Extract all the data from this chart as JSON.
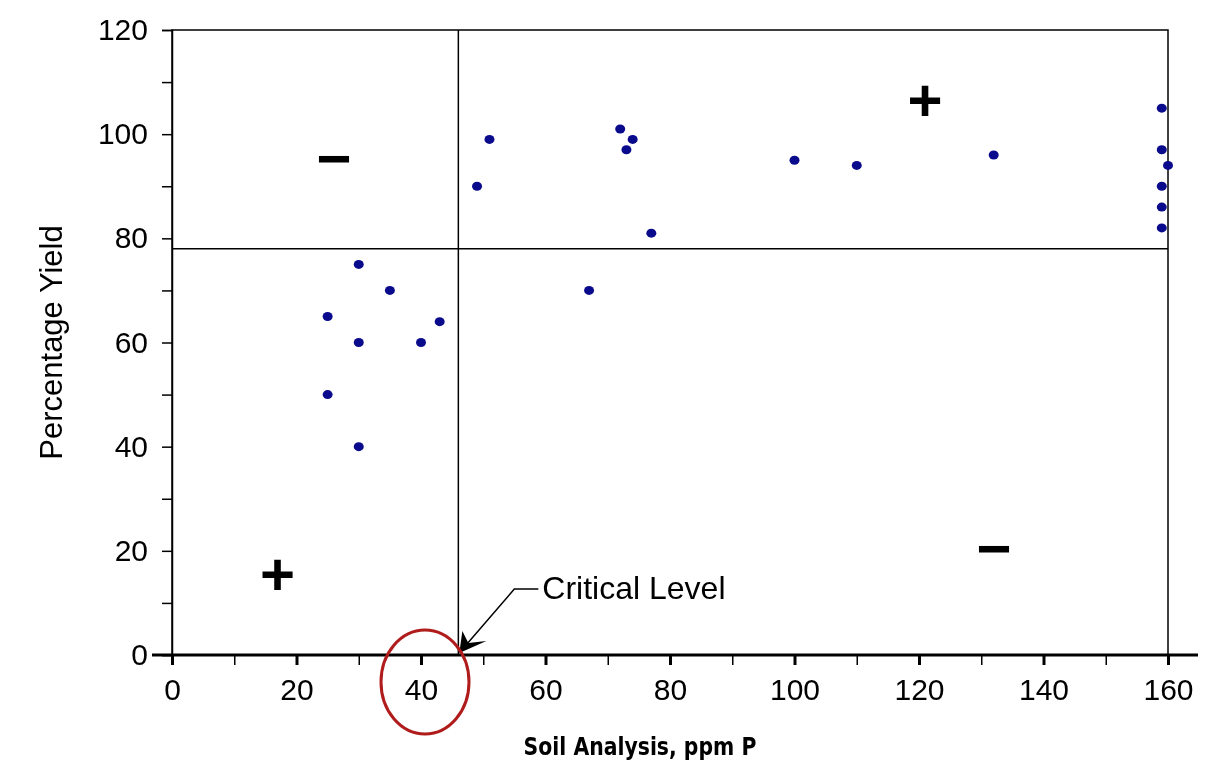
{
  "chart_data": {
    "type": "scatter",
    "xlabel": "Soil Analysis, ppm P",
    "ylabel": "Percentage Yield",
    "xlim": [
      0,
      160
    ],
    "ylim": [
      0,
      120
    ],
    "xticks": [
      0,
      {
        "value": 10,
        "label": null
      },
      20,
      {
        "value": 30,
        "label": null
      },
      40,
      {
        "value": 50,
        "label": null
      },
      60,
      {
        "value": 70,
        "label": null
      },
      80,
      {
        "value": 90,
        "label": null
      },
      100,
      {
        "value": 110,
        "label": null
      },
      120,
      {
        "value": 130,
        "label": null
      },
      140,
      {
        "value": 150,
        "label": null
      },
      160
    ],
    "yticks": [
      0,
      {
        "value": 10,
        "label": null
      },
      20,
      {
        "value": 30,
        "label": null
      },
      40,
      {
        "value": 50,
        "label": null
      },
      60,
      {
        "value": 70,
        "label": null
      },
      80,
      {
        "value": 90,
        "label": null
      },
      100,
      {
        "value": 110,
        "label": null
      },
      120
    ],
    "series": [
      {
        "color": "#0a0a8c",
        "x": [
          25,
          25,
          30,
          30,
          30,
          35,
          40,
          43,
          49,
          51,
          67,
          72,
          73,
          74,
          77,
          100,
          110,
          132,
          159,
          159,
          160,
          159,
          159,
          159
        ],
        "values": [
          65,
          50,
          75,
          60,
          40,
          70,
          60,
          64,
          90,
          99,
          70,
          101,
          97,
          99,
          81,
          95,
          94,
          96,
          105,
          97,
          94,
          90,
          86,
          82
        ]
      }
    ],
    "marker": "circle",
    "grid": false,
    "ref_lines": [
      {
        "axis": "x",
        "value": 46,
        "color": "#000000"
      },
      {
        "axis": "y",
        "value": 78,
        "color": "#000000"
      }
    ],
    "annotations": [
      "Critical Level",
      "−",
      "+",
      "+",
      "−"
    ]
  }
}
